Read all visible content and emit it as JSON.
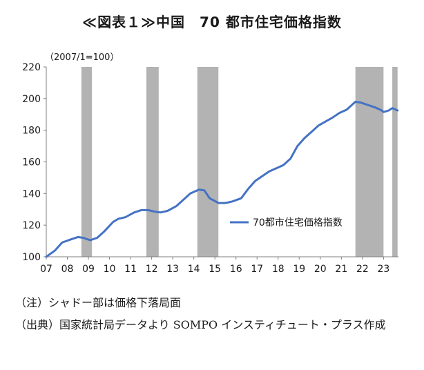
{
  "header": {
    "title": "≪図表１≫中国　70 都市住宅価格指数",
    "base_note": "（2007/1=100）"
  },
  "notes": {
    "note1": "（注）シャドー部は価格下落局面",
    "note2": "（出典）国家統計局データより SOMPO インスティチュート・プラス作成"
  },
  "colors": {
    "line": "#4472c4",
    "shade": "#b3b3b3",
    "axis": "#7f7f7f"
  },
  "chart_data": {
    "type": "line",
    "x_tick_labels": [
      "07",
      "08",
      "09",
      "10",
      "11",
      "12",
      "13",
      "14",
      "15",
      "16",
      "17",
      "18",
      "19",
      "20",
      "21",
      "22",
      "23"
    ],
    "ylim": [
      100,
      220
    ],
    "y_ticks": [
      100,
      120,
      140,
      160,
      180,
      200,
      220
    ],
    "legend": {
      "label": "70都市住宅価格指数",
      "position": "lower-right"
    },
    "shaded_periods": [
      {
        "start": "2008-09",
        "end": "2009-03"
      },
      {
        "start": "2011-10",
        "end": "2012-05"
      },
      {
        "start": "2014-03",
        "end": "2015-03"
      },
      {
        "start": "2021-09",
        "end": "2023-01"
      },
      {
        "start": "2023-06",
        "end": "2023-09"
      }
    ],
    "series": [
      {
        "name": "70都市住宅価格指数",
        "points": [
          [
            "2007-01",
            100
          ],
          [
            "2007-06",
            104
          ],
          [
            "2007-10",
            109
          ],
          [
            "2008-03",
            111
          ],
          [
            "2008-07",
            112.5
          ],
          [
            "2008-10",
            112
          ],
          [
            "2009-02",
            110.5
          ],
          [
            "2009-06",
            112
          ],
          [
            "2009-10",
            116
          ],
          [
            "2010-03",
            122
          ],
          [
            "2010-06",
            124
          ],
          [
            "2010-10",
            125
          ],
          [
            "2011-03",
            128
          ],
          [
            "2011-07",
            129.5
          ],
          [
            "2011-11",
            129.5
          ],
          [
            "2012-03",
            128.5
          ],
          [
            "2012-06",
            128
          ],
          [
            "2012-10",
            129
          ],
          [
            "2013-03",
            132
          ],
          [
            "2013-07",
            136
          ],
          [
            "2013-11",
            140
          ],
          [
            "2014-04",
            142.5
          ],
          [
            "2014-07",
            142
          ],
          [
            "2014-10",
            137
          ],
          [
            "2015-03",
            134
          ],
          [
            "2015-07",
            134
          ],
          [
            "2015-11",
            135
          ],
          [
            "2016-04",
            137
          ],
          [
            "2016-08",
            143
          ],
          [
            "2016-12",
            148
          ],
          [
            "2017-04",
            151
          ],
          [
            "2017-08",
            154
          ],
          [
            "2017-12",
            156
          ],
          [
            "2018-04",
            158
          ],
          [
            "2018-08",
            162
          ],
          [
            "2018-12",
            170
          ],
          [
            "2019-04",
            175
          ],
          [
            "2019-08",
            179
          ],
          [
            "2019-12",
            183
          ],
          [
            "2020-04",
            185.5
          ],
          [
            "2020-08",
            188
          ],
          [
            "2020-12",
            191
          ],
          [
            "2021-04",
            193
          ],
          [
            "2021-07",
            196
          ],
          [
            "2021-09",
            198
          ],
          [
            "2021-12",
            197.5
          ],
          [
            "2022-04",
            196
          ],
          [
            "2022-08",
            194.5
          ],
          [
            "2022-12",
            192.5
          ],
          [
            "2023-01",
            191.5
          ],
          [
            "2023-04",
            192.5
          ],
          [
            "2023-06",
            194
          ],
          [
            "2023-09",
            192.5
          ]
        ]
      }
    ]
  }
}
